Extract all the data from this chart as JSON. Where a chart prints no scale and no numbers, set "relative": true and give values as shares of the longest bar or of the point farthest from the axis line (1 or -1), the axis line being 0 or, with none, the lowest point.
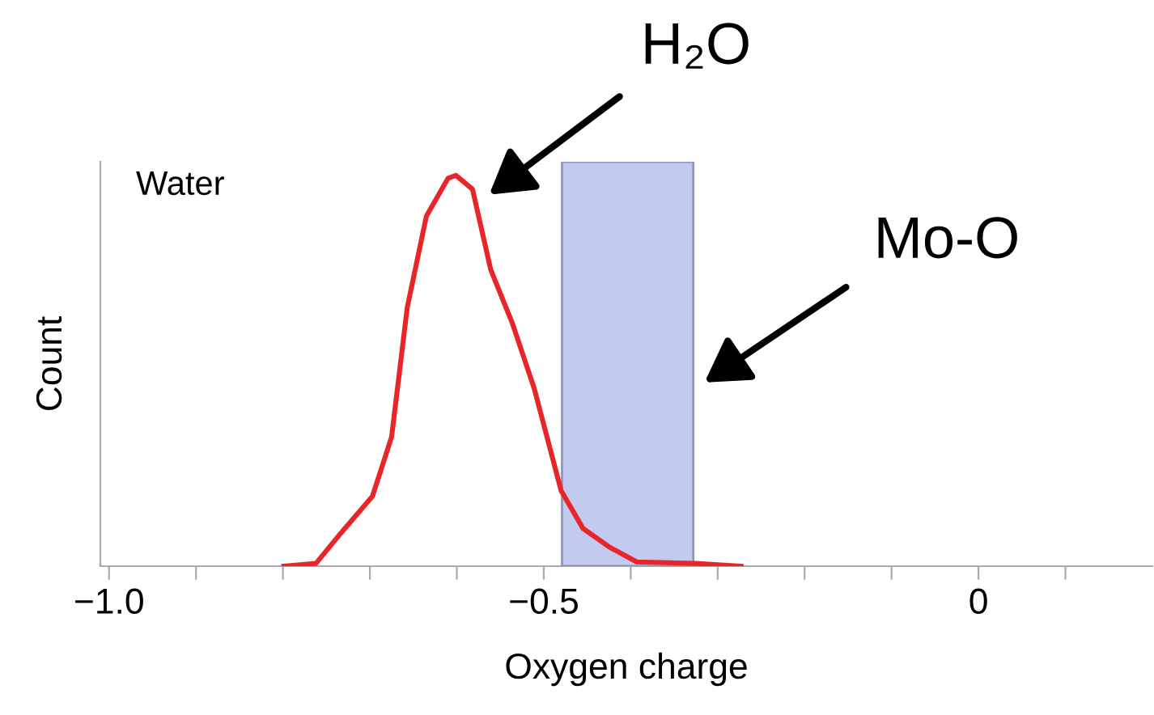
{
  "chart_data": {
    "type": "line",
    "relative": true,
    "xlabel": "Oxygen charge",
    "ylabel": "Count",
    "xlim": [
      -1.01,
      0.2
    ],
    "xticks": [
      {
        "value": -1.0,
        "label": "−1.0"
      },
      {
        "value": -0.9,
        "label": null
      },
      {
        "value": -0.8,
        "label": null
      },
      {
        "value": -0.7,
        "label": null
      },
      {
        "value": -0.6,
        "label": null
      },
      {
        "value": -0.5,
        "label": "−0.5"
      },
      {
        "value": -0.4,
        "label": null
      },
      {
        "value": -0.3,
        "label": null
      },
      {
        "value": -0.2,
        "label": null
      },
      {
        "value": -0.1,
        "label": null
      },
      0,
      {
        "value": 0.1,
        "label": null
      }
    ],
    "tick_labels": "x",
    "grid": false,
    "legend": false,
    "marker": "none",
    "line_style": "solid",
    "series": [
      {
        "color": "#e8262a",
        "x": [
          -0.799,
          -0.762,
          -0.734,
          -0.697,
          -0.675,
          -0.657,
          -0.635,
          -0.61,
          -0.601,
          -0.582,
          -0.561,
          -0.536,
          -0.511,
          -0.48,
          -0.455,
          -0.424,
          -0.393,
          -0.325,
          -0.273
        ],
        "values": [
          0,
          0.007,
          0.083,
          0.179,
          0.331,
          0.662,
          0.896,
          0.993,
          1,
          0.965,
          0.759,
          0.621,
          0.455,
          0.193,
          0.097,
          0.048,
          0.011,
          0.007,
          0
        ]
      }
    ],
    "bands": [
      {
        "axis": "x",
        "from": -0.479,
        "to": -0.328,
        "color": "#c0c8ef"
      }
    ],
    "annotations": [
      "Water",
      "H₂O",
      "Mo-O"
    ]
  }
}
